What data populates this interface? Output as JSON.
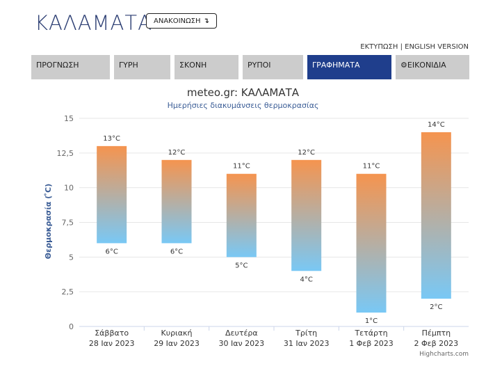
{
  "header": {
    "city": "ΚΑΛΑΜΑΤΑ",
    "announce_label": "ΑΝΑΚΟΙΝΩΣΗ",
    "announce_icon": "arrow-down-turn-icon",
    "print_link": "ΕΚΤΥΠΩΣΗ",
    "separator": "|",
    "english_link": "ENGLISH VERSION"
  },
  "tabs": [
    {
      "label": "ΠΡΟΓΝΩΣΗ"
    },
    {
      "label": "ΓΥΡΗ"
    },
    {
      "label": "ΣΚΟΝΗ"
    },
    {
      "label": "ΡΥΠΟΙ"
    },
    {
      "label": "ΓΡΑΦΗΜΑΤΑ"
    },
    {
      "label": "ΕΙΚΟΝΙΔΙΑ",
      "icon": "gear-icon"
    }
  ],
  "colors": {
    "accent": "#1f3e8c",
    "bar_top": "#f5944f",
    "bar_bottom": "#79c8f5",
    "axis_title": "#3b5d96"
  },
  "chart_data": {
    "type": "bar",
    "title": "meteo.gr: ΚΑΛΑΜΑΤΑ",
    "subtitle": "Ημερήσιες διακυμάνσεις θερμοκρασίας",
    "ylabel": "Θερμοκρασία ( ̊C)",
    "ylim": [
      0,
      15
    ],
    "yticks": [
      "0",
      "2,5",
      "5",
      "7,5",
      "10",
      "12,5",
      "15"
    ],
    "categories": [
      {
        "day": "Σάββατο",
        "date": "28 Ιαν 2023"
      },
      {
        "day": "Κυριακή",
        "date": "29 Ιαν 2023"
      },
      {
        "day": "Δευτέρα",
        "date": "30 Ιαν 2023"
      },
      {
        "day": "Τρίτη",
        "date": "31 Ιαν 2023"
      },
      {
        "day": "Τετάρτη",
        "date": "1 Φεβ 2023"
      },
      {
        "day": "Πέμπτη",
        "date": "2 Φεβ 2023"
      }
    ],
    "low": [
      6,
      6,
      5,
      4,
      1,
      2
    ],
    "high": [
      13,
      12,
      11,
      12,
      11,
      14
    ],
    "low_labels": [
      "6°C",
      "6°C",
      "5°C",
      "4°C",
      "1°C",
      "2°C"
    ],
    "high_labels": [
      "13°C",
      "12°C",
      "11°C",
      "12°C",
      "11°C",
      "14°C"
    ],
    "credit": "Highcharts.com",
    "grid": true
  }
}
